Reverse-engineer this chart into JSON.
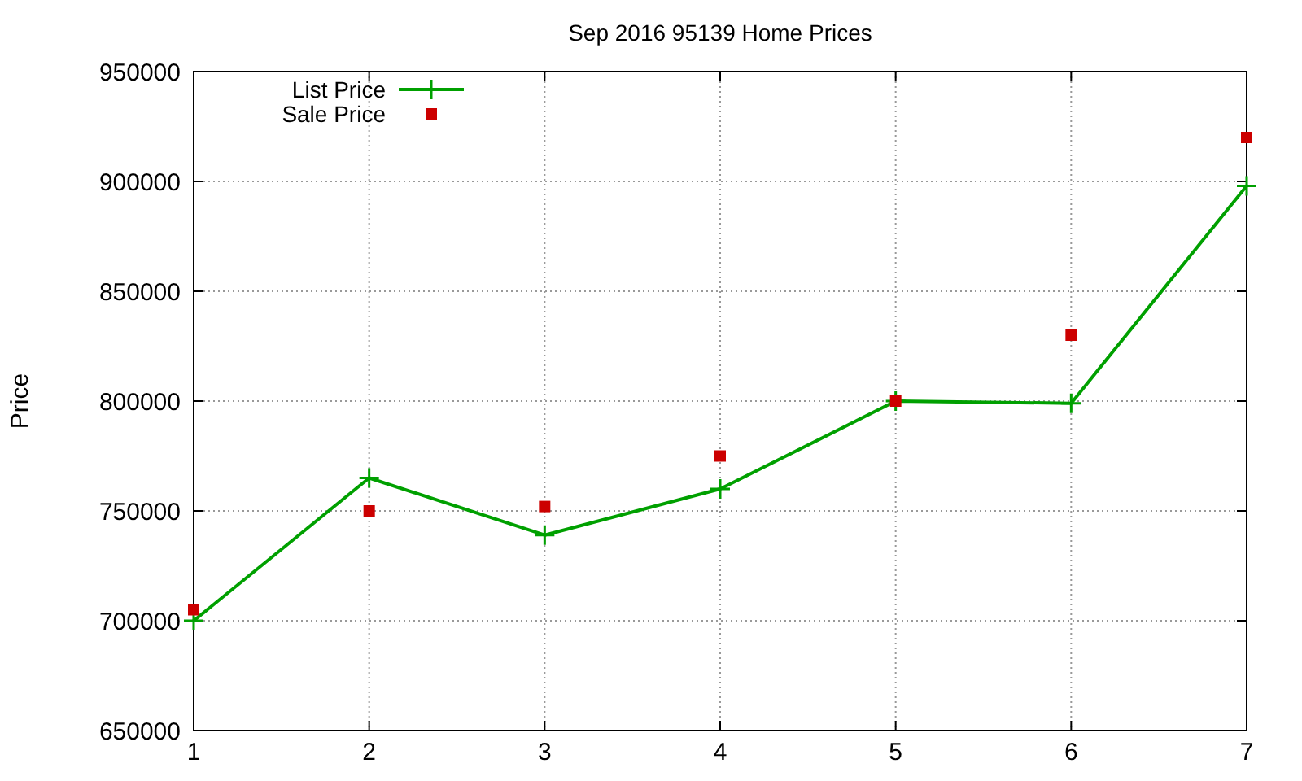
{
  "chart_data": {
    "type": "line",
    "title": "Sep 2016 95139 Home Prices",
    "ylabel": "Price",
    "x": [
      1,
      2,
      3,
      4,
      5,
      6,
      7
    ],
    "series": [
      {
        "name": "List Price",
        "color": "#00a000",
        "marker": "cross",
        "values": [
          700000,
          765000,
          739000,
          760000,
          800000,
          799000,
          898000
        ]
      },
      {
        "name": "Sale Price",
        "type": "scatter",
        "color": "#cc0000",
        "marker": "square",
        "values": [
          705000,
          750000,
          752000,
          775000,
          800000,
          830000,
          920000
        ]
      }
    ],
    "xlim": [
      1,
      7
    ],
    "xticks": [
      1,
      2,
      3,
      4,
      5,
      6,
      7
    ],
    "ylim": [
      650000,
      950000
    ],
    "yticks": [
      650000,
      700000,
      750000,
      800000,
      850000,
      900000,
      950000
    ],
    "grid": true,
    "legend": "top left"
  }
}
